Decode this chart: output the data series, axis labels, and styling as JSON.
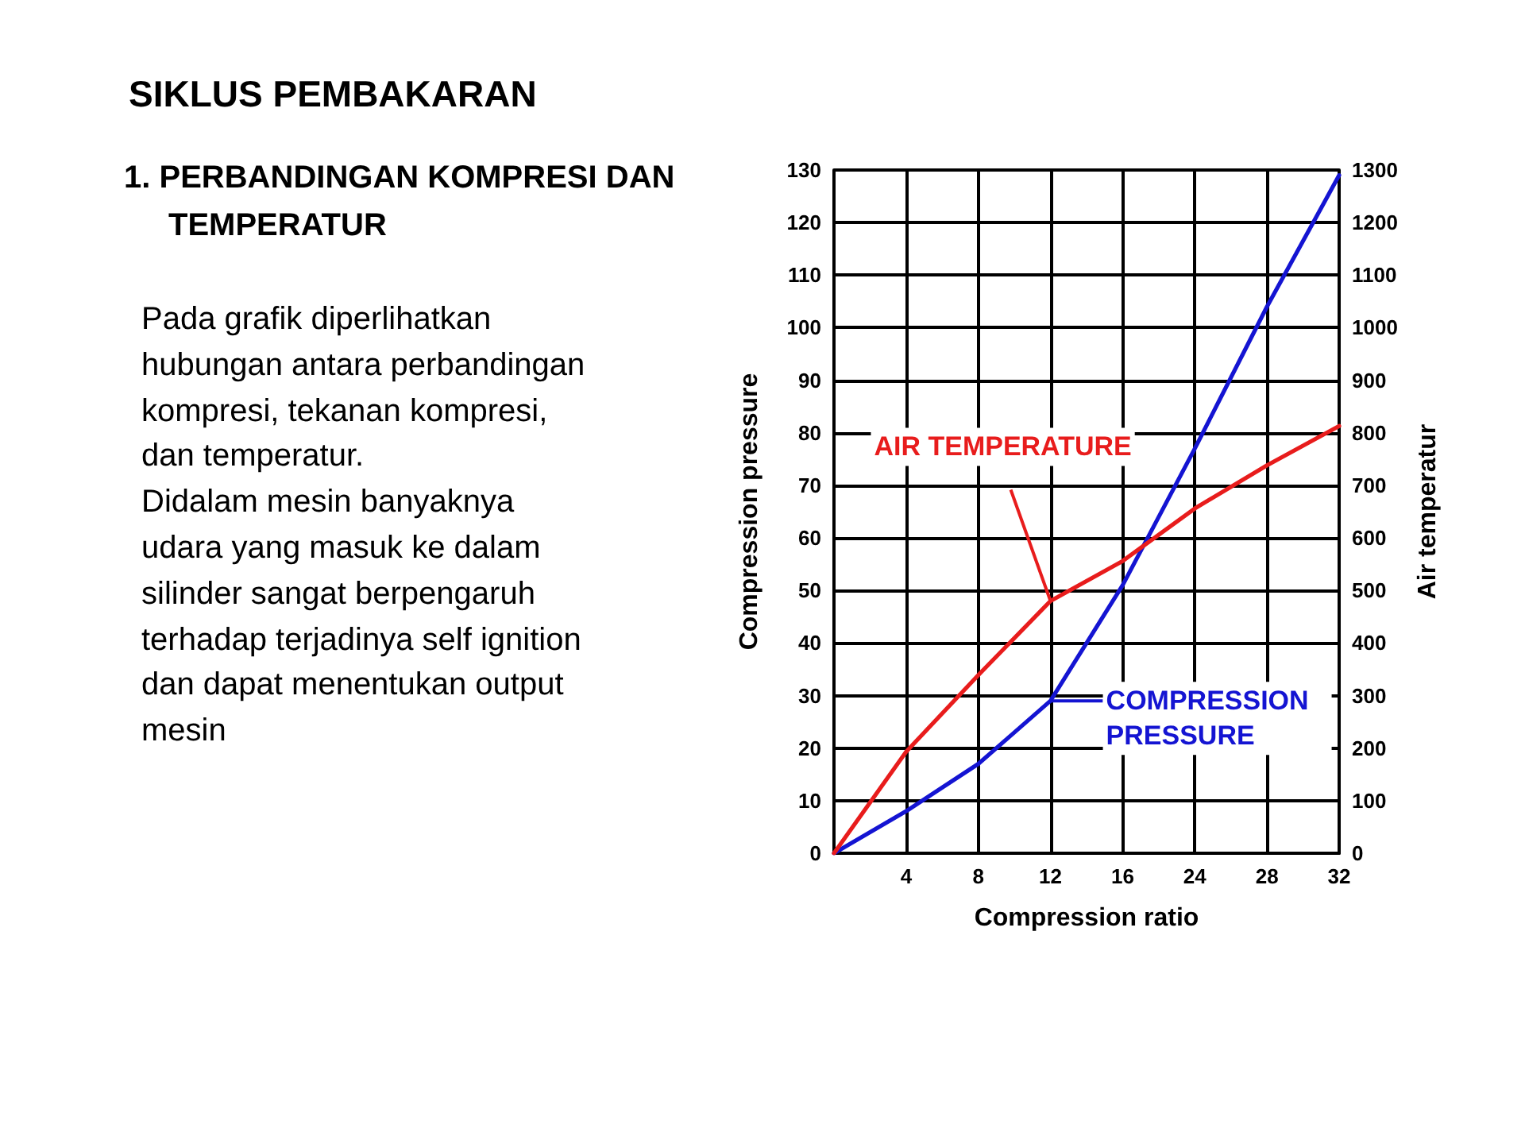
{
  "chart_data": {
    "type": "line",
    "title": "SIKLUS PEMBAKARAN",
    "subtitle": "1. PERBANDINGAN KOMPRESI DAN TEMPERATUR",
    "xlabel": "Compression ratio",
    "ylabel": "Compression pressure",
    "y2label": "Air temperatur",
    "annotations": [
      "Pada grafik diperlihatkan hubungan antara perbandingan kompresi, tekanan kompresi, dan temperatur.",
      "Didalam mesin banyaknya udara yang masuk ke dalam silinder sangat berpengaruh terhadap terjadinya self ignition dan dapat menentukan output mesin",
      {
        "text": "AIR TEMPERATURE",
        "x": "12",
        "y": 48
      },
      {
        "text": "COMPRESSION PRESSURE",
        "x": "12",
        "y": 29
      }
    ],
    "categories": [
      null,
      "4",
      "8",
      "12",
      "16",
      "24",
      "28",
      "32"
    ],
    "series": [
      {
        "color": "#1414d2",
        "axis": "y",
        "values": [
          0,
          8,
          17,
          29,
          51,
          77,
          104,
          129
        ]
      },
      {
        "color": "#e81c1c",
        "axis": "y2",
        "values": [
          0,
          193,
          339,
          480,
          556,
          656,
          738,
          813
        ]
      }
    ],
    "ylim": [
      0,
      130
    ],
    "yticks": [
      0,
      10,
      20,
      30,
      40,
      50,
      60,
      70,
      80,
      90,
      100,
      110,
      120,
      130
    ],
    "y2lim": [
      0,
      1300
    ],
    "y2ticks": [
      0,
      100,
      200,
      300,
      400,
      500,
      600,
      700,
      800,
      900,
      1000,
      1100,
      1200,
      1300
    ],
    "grid": true,
    "marker": "none",
    "line_style": "solid"
  }
}
